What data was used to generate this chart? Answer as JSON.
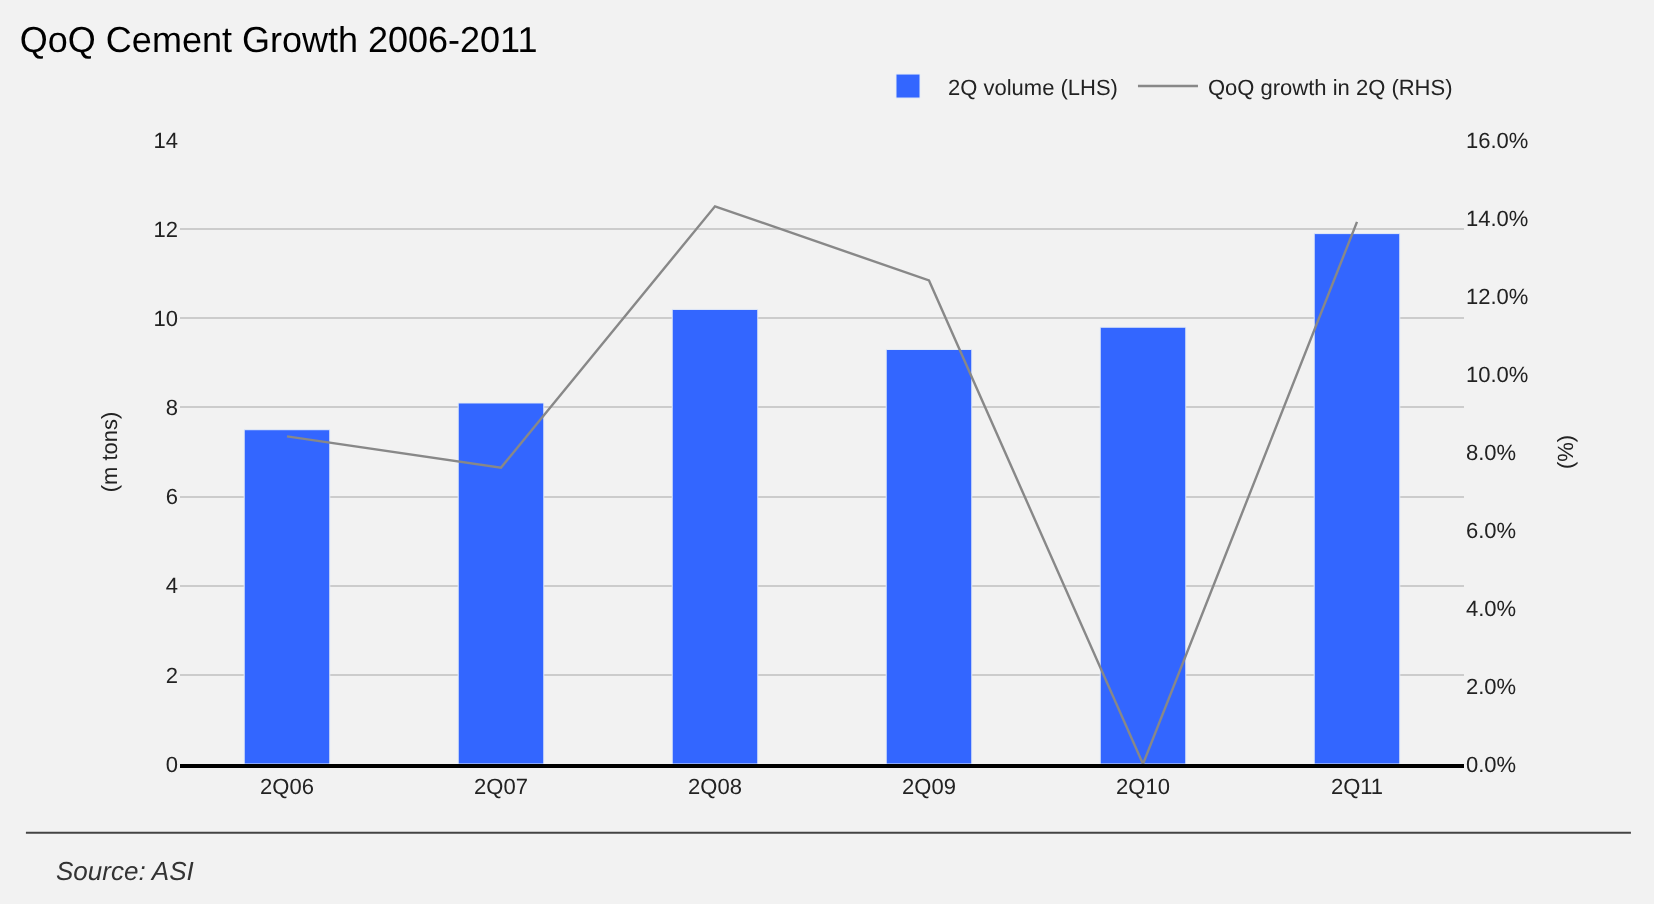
{
  "chart_data": {
    "type": "bar",
    "title": "QoQ Cement Growth 2006-2011",
    "ylabel": "(m tons)",
    "y2label": "(%)",
    "categories": [
      "2Q06",
      "2Q07",
      "2Q08",
      "2Q09",
      "2Q10",
      "2Q11"
    ],
    "series": [
      {
        "name": "2Q volume (LHS)",
        "color": "#3366ff",
        "values": [
          7.5,
          8.1,
          10.2,
          9.3,
          9.8,
          11.9
        ]
      },
      {
        "name": "QoQ growth in 2Q (RHS)",
        "type": "line",
        "axis": "y2",
        "color": "#888888",
        "values": [
          8.4,
          7.6,
          14.3,
          12.4,
          0.0,
          13.9
        ]
      }
    ],
    "ylim": [
      0,
      14
    ],
    "yticks": [
      0,
      2,
      4,
      6,
      8,
      10,
      12,
      14
    ],
    "y2lim": [
      0,
      16
    ],
    "y2ticks": [
      {
        "value": 0,
        "label": "0.0%"
      },
      {
        "value": 2,
        "label": "2.0%"
      },
      {
        "value": 4,
        "label": "4.0%"
      },
      {
        "value": 6,
        "label": "6.0%"
      },
      {
        "value": 8,
        "label": "8.0%"
      },
      {
        "value": 10,
        "label": "10.0%"
      },
      {
        "value": 12,
        "label": "12.0%"
      },
      {
        "value": 14,
        "label": "14.0%"
      },
      {
        "value": 16,
        "label": "16.0%"
      }
    ],
    "grid": "y",
    "legend": "top right",
    "marker": "none",
    "annotations": [
      "Source: ASI"
    ]
  }
}
